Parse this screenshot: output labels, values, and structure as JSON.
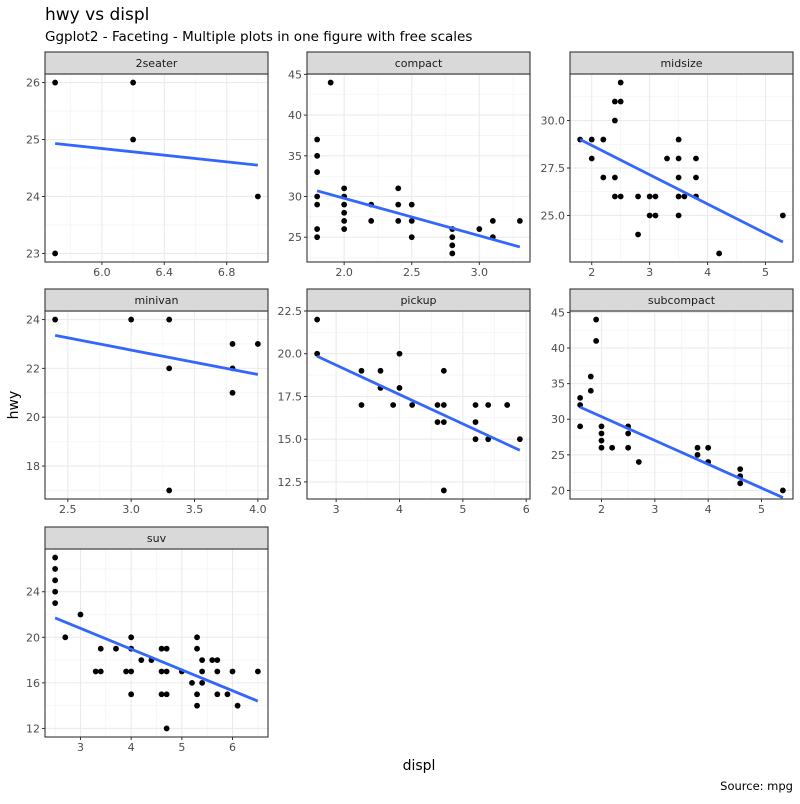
{
  "chart_data": {
    "type": "scatter",
    "title": "hwy vs displ",
    "subtitle": "Ggplot2 - Faceting - Multiple plots in one figure with free scales",
    "xlabel": "displ",
    "ylabel": "hwy",
    "caption": "Source: mpg",
    "grid": true,
    "point_color": "#000000",
    "fit_color": "#3366FF",
    "strip_fill": "#D9D9D9",
    "facets": [
      {
        "name": "2seater",
        "x_ticks": [
          "6.0",
          "6.4",
          "6.8"
        ],
        "y_ticks": [
          "23",
          "24",
          "25",
          "26"
        ],
        "points": [
          [
            5.7,
            26
          ],
          [
            5.7,
            23
          ],
          [
            6.2,
            26
          ],
          [
            6.2,
            25
          ],
          [
            7.0,
            24
          ]
        ],
        "fit": [
          [
            5.7,
            24.93
          ],
          [
            7.0,
            24.55
          ]
        ]
      },
      {
        "name": "compact",
        "x_ticks": [
          "2.0",
          "2.5",
          "3.0"
        ],
        "y_ticks": [
          "25",
          "30",
          "35",
          "40",
          "45"
        ],
        "points": [
          [
            1.8,
            37
          ],
          [
            1.8,
            35
          ],
          [
            1.8,
            33
          ],
          [
            1.8,
            30
          ],
          [
            1.8,
            29
          ],
          [
            1.8,
            26
          ],
          [
            1.8,
            25
          ],
          [
            1.9,
            44
          ],
          [
            2.0,
            31
          ],
          [
            2.0,
            30
          ],
          [
            2.0,
            29
          ],
          [
            2.0,
            28
          ],
          [
            2.0,
            27
          ],
          [
            2.0,
            26
          ],
          [
            2.2,
            29
          ],
          [
            2.2,
            27
          ],
          [
            2.4,
            31
          ],
          [
            2.4,
            29
          ],
          [
            2.4,
            27
          ],
          [
            2.5,
            29
          ],
          [
            2.5,
            27
          ],
          [
            2.5,
            25
          ],
          [
            2.8,
            26
          ],
          [
            2.8,
            25
          ],
          [
            2.8,
            24
          ],
          [
            2.8,
            23
          ],
          [
            3.0,
            26
          ],
          [
            3.1,
            27
          ],
          [
            3.1,
            25
          ],
          [
            3.3,
            27
          ]
        ],
        "fit": [
          [
            1.8,
            30.7
          ],
          [
            3.3,
            23.8
          ]
        ]
      },
      {
        "name": "midsize",
        "x_ticks": [
          "2",
          "3",
          "4",
          "5"
        ],
        "y_ticks": [
          "25.0",
          "27.5",
          "30.0"
        ],
        "points": [
          [
            1.8,
            29
          ],
          [
            2.0,
            29
          ],
          [
            2.0,
            28
          ],
          [
            2.2,
            29
          ],
          [
            2.2,
            27
          ],
          [
            2.4,
            31
          ],
          [
            2.4,
            30
          ],
          [
            2.4,
            27
          ],
          [
            2.4,
            26
          ],
          [
            2.5,
            32
          ],
          [
            2.5,
            31
          ],
          [
            2.5,
            26
          ],
          [
            2.8,
            26
          ],
          [
            2.8,
            24
          ],
          [
            3.0,
            26
          ],
          [
            3.0,
            25
          ],
          [
            3.1,
            26
          ],
          [
            3.1,
            25
          ],
          [
            3.3,
            28
          ],
          [
            3.5,
            29
          ],
          [
            3.5,
            28
          ],
          [
            3.5,
            27
          ],
          [
            3.5,
            26
          ],
          [
            3.5,
            25
          ],
          [
            3.6,
            26
          ],
          [
            3.8,
            28
          ],
          [
            3.8,
            27
          ],
          [
            3.8,
            26
          ],
          [
            4.2,
            23
          ],
          [
            5.3,
            25
          ]
        ],
        "fit": [
          [
            1.8,
            29.0
          ],
          [
            5.3,
            23.6
          ]
        ]
      },
      {
        "name": "minivan",
        "x_ticks": [
          "2.5",
          "3.0",
          "3.5",
          "4.0"
        ],
        "y_ticks": [
          "18",
          "20",
          "22",
          "24"
        ],
        "points": [
          [
            2.4,
            24
          ],
          [
            3.0,
            24
          ],
          [
            3.3,
            24
          ],
          [
            3.3,
            22
          ],
          [
            3.3,
            17
          ],
          [
            3.8,
            23
          ],
          [
            3.8,
            22
          ],
          [
            3.8,
            21
          ],
          [
            4.0,
            23
          ]
        ],
        "fit": [
          [
            2.4,
            23.35
          ],
          [
            4.0,
            21.75
          ]
        ]
      },
      {
        "name": "pickup",
        "x_ticks": [
          "3",
          "4",
          "5",
          "6"
        ],
        "y_ticks": [
          "12.5",
          "15.0",
          "17.5",
          "20.0",
          "22.5"
        ],
        "points": [
          [
            2.7,
            22
          ],
          [
            2.7,
            20
          ],
          [
            3.4,
            19
          ],
          [
            3.4,
            17
          ],
          [
            3.7,
            19
          ],
          [
            3.7,
            18
          ],
          [
            3.9,
            17
          ],
          [
            4.0,
            20
          ],
          [
            4.0,
            18
          ],
          [
            4.2,
            17
          ],
          [
            4.6,
            17
          ],
          [
            4.6,
            16
          ],
          [
            4.7,
            19
          ],
          [
            4.7,
            17
          ],
          [
            4.7,
            16
          ],
          [
            4.7,
            12
          ],
          [
            5.2,
            17
          ],
          [
            5.2,
            16
          ],
          [
            5.2,
            15
          ],
          [
            5.4,
            17
          ],
          [
            5.4,
            15
          ],
          [
            5.7,
            17
          ],
          [
            5.9,
            15
          ]
        ],
        "fit": [
          [
            2.7,
            19.85
          ],
          [
            5.9,
            14.35
          ]
        ]
      },
      {
        "name": "subcompact",
        "x_ticks": [
          "2",
          "3",
          "4",
          "5"
        ],
        "y_ticks": [
          "20",
          "25",
          "30",
          "35",
          "40",
          "45"
        ],
        "points": [
          [
            1.6,
            33
          ],
          [
            1.6,
            32
          ],
          [
            1.6,
            29
          ],
          [
            1.8,
            36
          ],
          [
            1.8,
            34
          ],
          [
            1.9,
            44
          ],
          [
            1.9,
            41
          ],
          [
            2.0,
            29
          ],
          [
            2.0,
            28
          ],
          [
            2.0,
            27
          ],
          [
            2.0,
            26
          ],
          [
            2.2,
            26
          ],
          [
            2.5,
            29
          ],
          [
            2.5,
            28
          ],
          [
            2.5,
            26
          ],
          [
            2.7,
            24
          ],
          [
            3.8,
            26
          ],
          [
            3.8,
            25
          ],
          [
            4.0,
            26
          ],
          [
            4.0,
            24
          ],
          [
            4.6,
            23
          ],
          [
            4.6,
            22
          ],
          [
            4.6,
            21
          ],
          [
            5.4,
            20
          ]
        ],
        "fit": [
          [
            1.6,
            31.7
          ],
          [
            5.4,
            19.0
          ]
        ]
      },
      {
        "name": "suv",
        "x_ticks": [
          "3",
          "4",
          "5",
          "6"
        ],
        "y_ticks": [
          "12",
          "16",
          "20",
          "24"
        ],
        "points": [
          [
            2.5,
            27
          ],
          [
            2.5,
            26
          ],
          [
            2.5,
            25
          ],
          [
            2.5,
            24
          ],
          [
            2.5,
            23
          ],
          [
            2.7,
            20
          ],
          [
            3.0,
            22
          ],
          [
            3.3,
            17
          ],
          [
            3.4,
            19
          ],
          [
            3.4,
            17
          ],
          [
            3.7,
            19
          ],
          [
            3.9,
            17
          ],
          [
            4.0,
            20
          ],
          [
            4.0,
            19
          ],
          [
            4.0,
            17
          ],
          [
            4.0,
            15
          ],
          [
            4.2,
            18
          ],
          [
            4.4,
            18
          ],
          [
            4.6,
            19
          ],
          [
            4.6,
            17
          ],
          [
            4.6,
            15
          ],
          [
            4.7,
            19
          ],
          [
            4.7,
            17
          ],
          [
            4.7,
            15
          ],
          [
            4.7,
            12
          ],
          [
            5.0,
            17
          ],
          [
            5.2,
            16
          ],
          [
            5.3,
            20
          ],
          [
            5.3,
            19
          ],
          [
            5.3,
            15
          ],
          [
            5.3,
            14
          ],
          [
            5.4,
            18
          ],
          [
            5.4,
            17
          ],
          [
            5.4,
            16
          ],
          [
            5.6,
            18
          ],
          [
            5.7,
            18
          ],
          [
            5.7,
            17
          ],
          [
            5.7,
            15
          ],
          [
            5.9,
            15
          ],
          [
            6.0,
            17
          ],
          [
            6.1,
            14
          ],
          [
            6.5,
            17
          ]
        ],
        "fit": [
          [
            2.5,
            21.7
          ],
          [
            6.5,
            14.4
          ]
        ]
      }
    ]
  }
}
